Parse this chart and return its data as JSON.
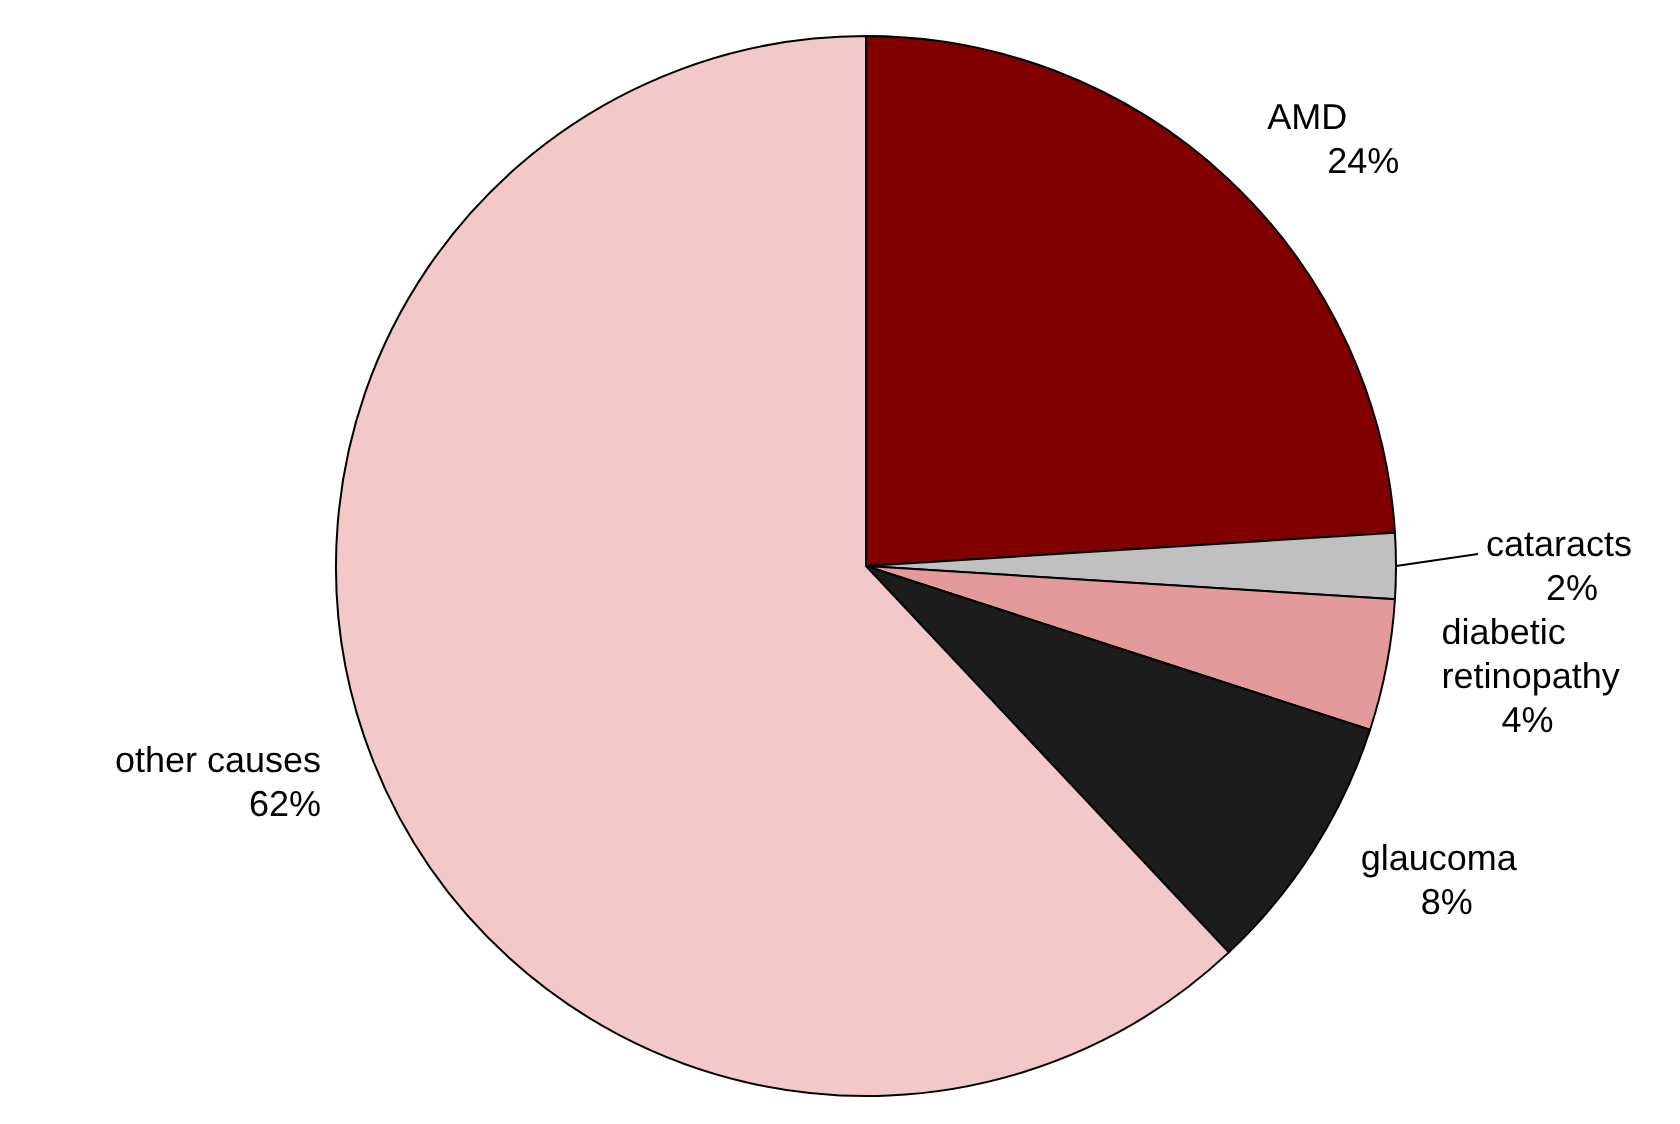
{
  "chart_data": {
    "type": "pie",
    "categories": [
      "AMD",
      "cataracts",
      "diabetic retinopathy",
      "glaucoma",
      "other causes"
    ],
    "values": [
      24,
      2,
      4,
      8,
      62
    ],
    "colors": [
      "#800000",
      "#c0c0c0",
      "#e49a9a",
      "#1c1c1c",
      "#f2c8c8"
    ],
    "value_labels": [
      "24%",
      "2%",
      "4%",
      "8%",
      "62%"
    ]
  }
}
